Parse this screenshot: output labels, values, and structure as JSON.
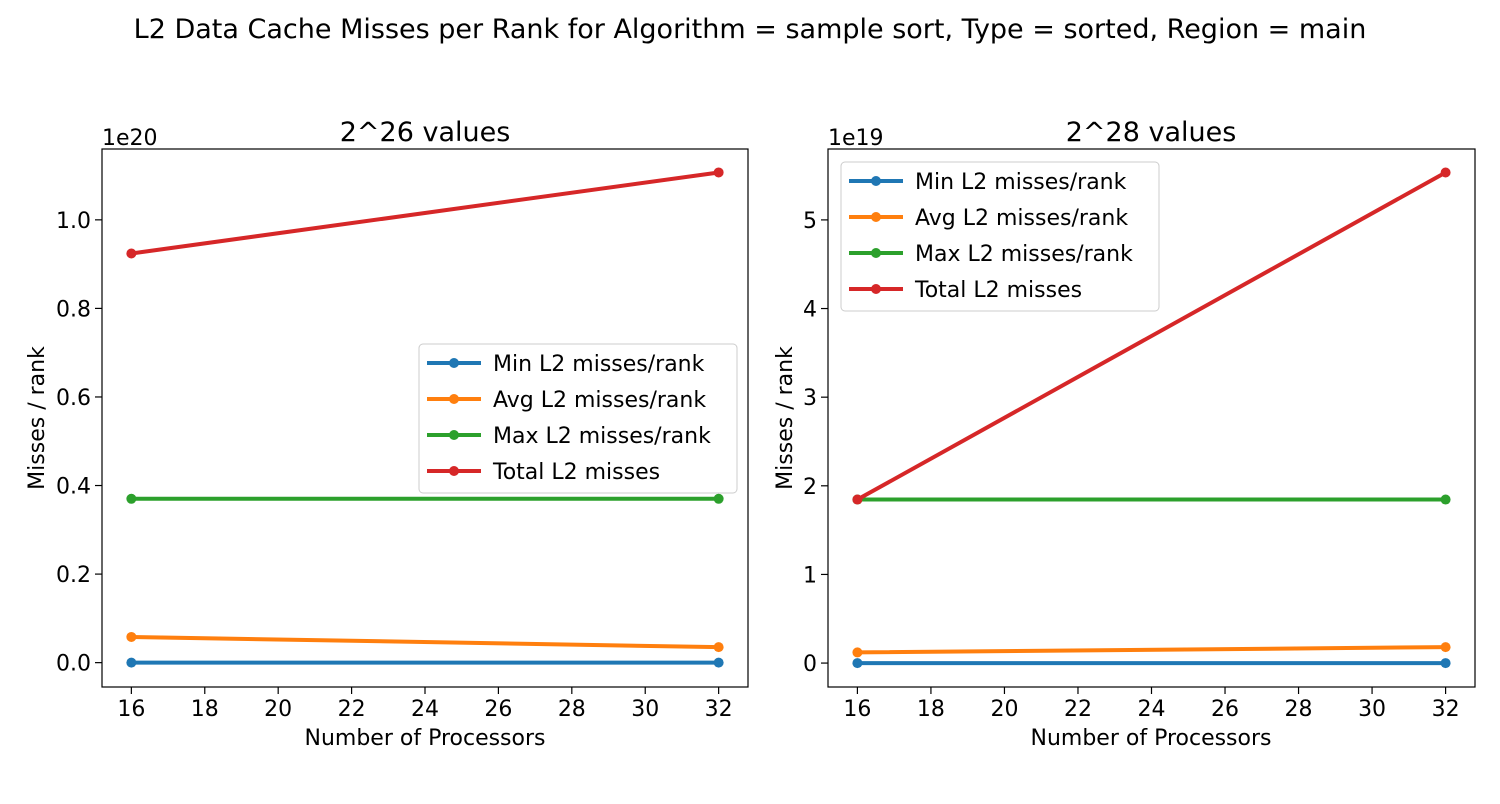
{
  "figure": {
    "title": "L2 Data Cache Misses per Rank for Algorithm = sample sort, Type = sorted, Region = main"
  },
  "chart_data": [
    {
      "type": "line",
      "title": "2^26 values",
      "xlabel": "Number of Processors",
      "ylabel": "Misses / rank",
      "y_offset_label": "1e20",
      "x": [
        16,
        32
      ],
      "xlim": [
        15.2,
        32.8
      ],
      "ylim": [
        -0.055,
        1.16
      ],
      "xticks": [
        16,
        18,
        20,
        22,
        24,
        26,
        28,
        30,
        32
      ],
      "yticks": [
        0.0,
        0.2,
        0.4,
        0.6,
        0.8,
        1.0
      ],
      "ytick_labels": [
        "0.0",
        "0.2",
        "0.4",
        "0.6",
        "0.8",
        "1.0"
      ],
      "legend_position": "center-right",
      "series": [
        {
          "name": "Min L2 misses/rank",
          "color": "#1f77b4",
          "values": [
            0.0,
            0.0
          ]
        },
        {
          "name": "Avg L2 misses/rank",
          "color": "#ff7f0e",
          "values": [
            0.058,
            0.035
          ]
        },
        {
          "name": "Max L2 misses/rank",
          "color": "#2ca02c",
          "values": [
            0.37,
            0.37
          ]
        },
        {
          "name": "Total L2 misses",
          "color": "#d62728",
          "values": [
            0.924,
            1.107
          ]
        }
      ]
    },
    {
      "type": "line",
      "title": "2^28 values",
      "xlabel": "Number of Processors",
      "ylabel": "Misses / rank",
      "y_offset_label": "1e19",
      "x": [
        16,
        32
      ],
      "xlim": [
        15.2,
        32.8
      ],
      "ylim": [
        -0.27,
        5.8
      ],
      "xticks": [
        16,
        18,
        20,
        22,
        24,
        26,
        28,
        30,
        32
      ],
      "yticks": [
        0,
        1,
        2,
        3,
        4,
        5
      ],
      "ytick_labels": [
        "0",
        "1",
        "2",
        "3",
        "4",
        "5"
      ],
      "legend_position": "upper-left",
      "series": [
        {
          "name": "Min L2 misses/rank",
          "color": "#1f77b4",
          "values": [
            0.0,
            0.0
          ]
        },
        {
          "name": "Avg L2 misses/rank",
          "color": "#ff7f0e",
          "values": [
            0.12,
            0.18
          ]
        },
        {
          "name": "Max L2 misses/rank",
          "color": "#2ca02c",
          "values": [
            1.845,
            1.845
          ]
        },
        {
          "name": "Total L2 misses",
          "color": "#d62728",
          "values": [
            1.845,
            5.535
          ]
        }
      ]
    }
  ]
}
